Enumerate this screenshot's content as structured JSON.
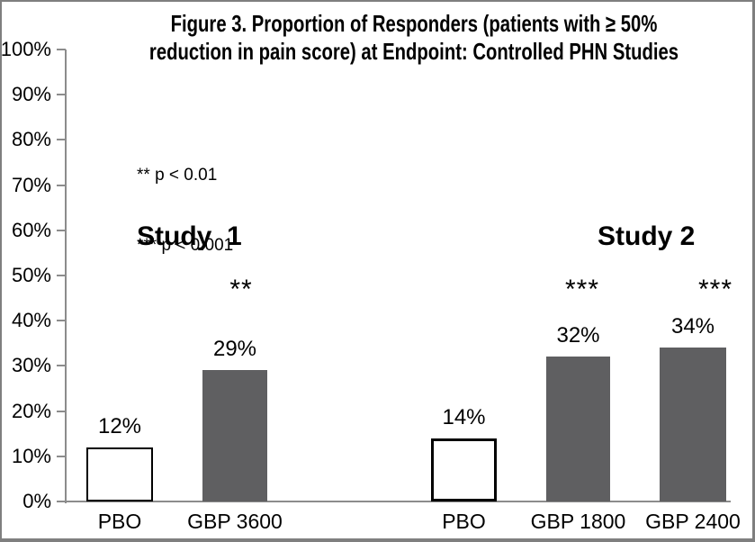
{
  "chart_data": {
    "type": "bar",
    "title": "Figure 3. Proportion of Responders (patients with ≥ 50% reduction in pain score) at Endpoint: Controlled PHN Studies",
    "title_lines": [
      "Figure 3. Proportion of Responders (patients with ≥ 50%",
      "reduction in pain score) at Endpoint: Controlled PHN Studies"
    ],
    "xlabel": "",
    "ylabel": "",
    "ylim": [
      0,
      100
    ],
    "ytick_step": 10,
    "ytick_labels": [
      "0%",
      "10%",
      "20%",
      "30%",
      "40%",
      "50%",
      "60%",
      "70%",
      "80%",
      "90%",
      "100%"
    ],
    "grid": "off",
    "annotations": [
      "** p < 0.01",
      "*** p < 0.001"
    ],
    "groups": [
      {
        "name": "Study  1",
        "bars": [
          {
            "category": "PBO",
            "value": 12,
            "label": "12%",
            "style": "placebo",
            "significance": ""
          },
          {
            "category": "GBP 3600",
            "value": 29,
            "label": "29%",
            "style": "treatment",
            "significance": "**"
          }
        ]
      },
      {
        "name": "Study 2",
        "bars": [
          {
            "category": "PBO",
            "value": 14,
            "label": "14%",
            "style": "placebo",
            "significance": ""
          },
          {
            "category": "GBP 1800",
            "value": 32,
            "label": "32%",
            "style": "treatment",
            "significance": "***"
          },
          {
            "category": "GBP 2400",
            "value": 34,
            "label": "34%",
            "style": "treatment",
            "significance": "***"
          }
        ]
      }
    ],
    "colors": {
      "treatment_fill": "#5f5f61",
      "placebo_fill": "#ffffff",
      "placebo_border": "#000000",
      "axis": "#8c8c8c",
      "outer_border": "#7f7f7f",
      "text": "#000000"
    }
  }
}
